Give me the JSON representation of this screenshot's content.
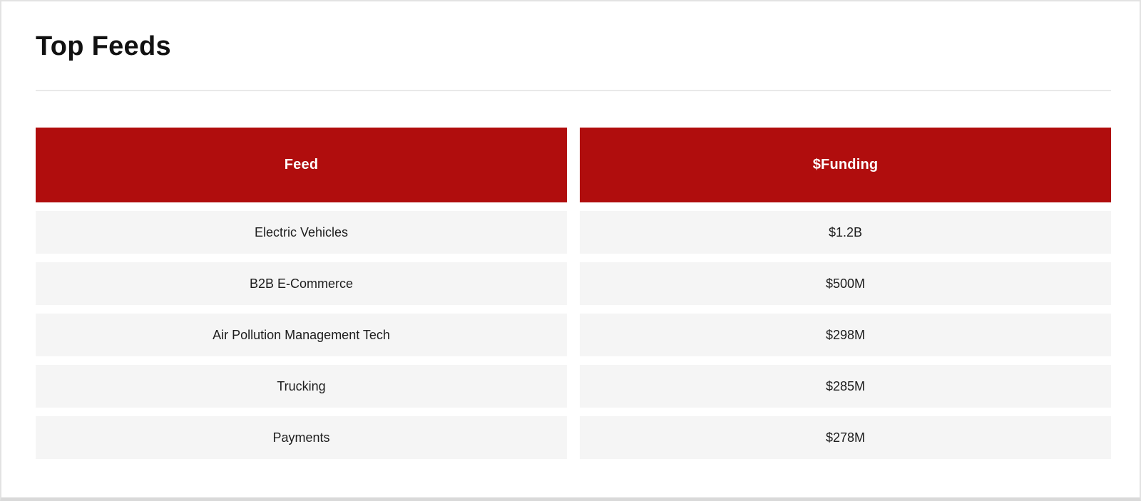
{
  "page": {
    "title": "Top Feeds"
  },
  "table": {
    "headers": {
      "feed": "Feed",
      "funding": "$Funding"
    },
    "rows": [
      {
        "feed": "Electric Vehicles",
        "funding": "$1.2B"
      },
      {
        "feed": "B2B E-Commerce",
        "funding": "$500M"
      },
      {
        "feed": "Air Pollution Management Tech",
        "funding": "$298M"
      },
      {
        "feed": "Trucking",
        "funding": "$285M"
      },
      {
        "feed": "Payments",
        "funding": "$278M"
      }
    ]
  },
  "colors": {
    "header_bg": "#b00d0d",
    "header_text": "#ffffff",
    "row_bg": "#f5f5f5",
    "row_text": "#1d1d1d"
  }
}
